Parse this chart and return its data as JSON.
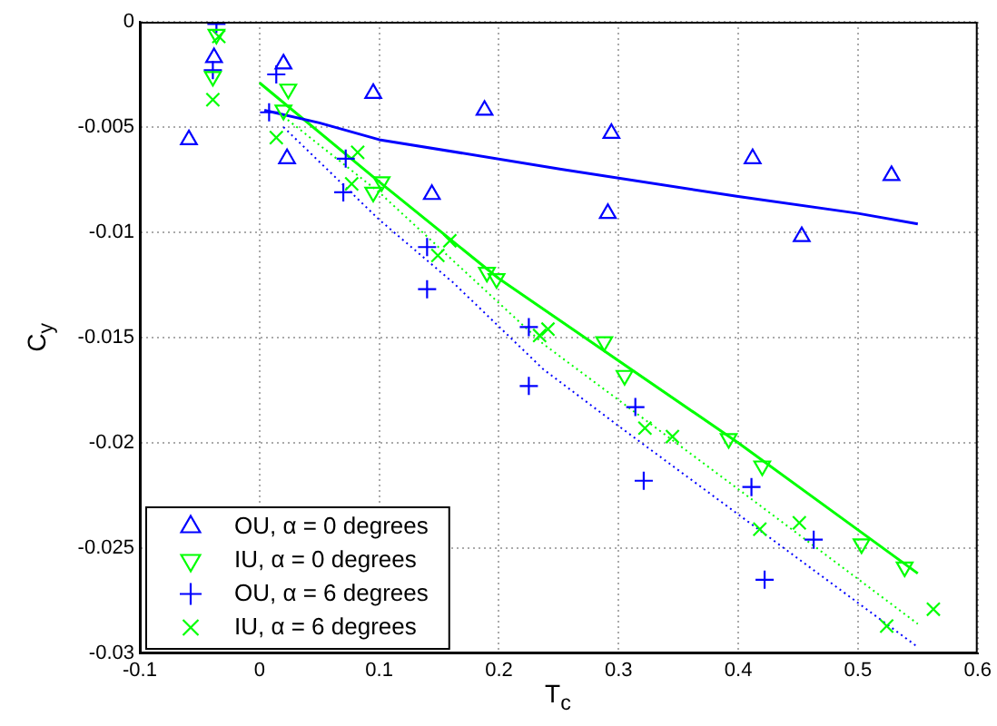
{
  "chart_data": {
    "type": "scatter",
    "xlabel": "T$_{c}$",
    "ylabel": "C$_{y}$",
    "xlim": [
      -0.1,
      0.6
    ],
    "ylim": [
      -0.03,
      0
    ],
    "xticks": [
      -0.1,
      0,
      0.1,
      0.2,
      0.3,
      0.4,
      0.5,
      0.6
    ],
    "yticks": [
      -0.03,
      -0.025,
      -0.02,
      -0.015,
      -0.01,
      -0.005,
      0
    ],
    "grid": true,
    "legend": "bottom left",
    "series": [
      {
        "name": "OU, α = 0 degrees",
        "marker": "triangle",
        "color": "#0000ff",
        "x": [
          -0.059,
          -0.038,
          0.02,
          0.023,
          0.095,
          0.144,
          0.188,
          0.294,
          0.291,
          0.412,
          0.453,
          0.528
        ],
        "values": [
          -0.0056,
          -0.0017,
          -0.002,
          -0.0065,
          -0.0034,
          -0.0082,
          -0.0042,
          -0.0053,
          -0.0091,
          -0.0065,
          -0.0102,
          -0.0073
        ]
      },
      {
        "type": "line",
        "marker": "none",
        "line_style": "solid",
        "color": "#0000ff",
        "x": [
          0.004,
          0.05,
          0.1,
          0.252,
          0.4,
          0.5,
          0.55
        ],
        "values": [
          -0.0042,
          -0.0048,
          -0.0056,
          -0.007,
          -0.0083,
          -0.0091,
          -0.0096
        ]
      },
      {
        "name": "IU, α = 0 degrees",
        "marker": "triangle_down",
        "color": "#00ff00",
        "x": [
          -0.036,
          -0.039,
          0.024,
          0.02,
          0.095,
          0.102,
          0.19,
          0.198,
          0.288,
          0.305,
          0.392,
          0.42,
          0.503,
          0.539
        ],
        "values": [
          -0.0006,
          -0.0026,
          -0.0032,
          -0.0042,
          -0.0081,
          -0.0076,
          -0.0119,
          -0.0122,
          -0.0152,
          -0.0168,
          -0.0198,
          -0.0211,
          -0.0248,
          -0.0259
        ]
      },
      {
        "type": "line",
        "marker": "none",
        "line_style": "solid",
        "color": "#00ff00",
        "x": [
          0,
          0.1,
          0.2,
          0.4,
          0.55
        ],
        "values": [
          -0.0029,
          -0.0076,
          -0.0122,
          -0.02,
          -0.0262
        ]
      },
      {
        "name": "OU, α = 6 degrees",
        "marker": "cross",
        "color": "#0000ff",
        "x": [
          -0.036,
          -0.039,
          0.014,
          0.008,
          0.072,
          0.07,
          0.14,
          0.14,
          0.225,
          0.225,
          0.314,
          0.321,
          0.411,
          0.422,
          0.463
        ],
        "values": [
          -0.0001,
          -0.0023,
          -0.0025,
          -0.0043,
          -0.0065,
          -0.0081,
          -0.0107,
          -0.0127,
          -0.0145,
          -0.0173,
          -0.0183,
          -0.0218,
          -0.0221,
          -0.0265,
          -0.0246
        ]
      },
      {
        "type": "line",
        "marker": "none",
        "line_style": "dotted",
        "color": "#0000ff",
        "x": [
          0.02,
          0.04,
          0.1,
          0.162,
          0.237,
          0.3,
          0.4,
          0.55
        ],
        "values": [
          -0.005,
          -0.0061,
          -0.0094,
          -0.0124,
          -0.0165,
          -0.0192,
          -0.0234,
          -0.0297
        ]
      },
      {
        "name": "IU, α = 6 degrees",
        "marker": "x",
        "color": "#00ff00",
        "x": [
          -0.034,
          -0.039,
          0.014,
          0.082,
          0.077,
          0.149,
          0.159,
          0.234,
          0.241,
          0.322,
          0.345,
          0.418,
          0.451,
          0.524,
          0.563
        ],
        "values": [
          -0.0007,
          -0.0037,
          -0.0055,
          -0.0062,
          -0.0077,
          -0.0111,
          -0.0104,
          -0.0149,
          -0.0146,
          -0.0193,
          -0.0197,
          -0.0241,
          -0.0238,
          -0.0287,
          -0.0279
        ]
      },
      {
        "type": "line",
        "marker": "none",
        "line_style": "dotted",
        "color": "#00ff00",
        "x": [
          0.02,
          0.1,
          0.237,
          0.4,
          0.55
        ],
        "values": [
          -0.0045,
          -0.0081,
          -0.0153,
          -0.0222,
          -0.0286
        ]
      }
    ]
  }
}
